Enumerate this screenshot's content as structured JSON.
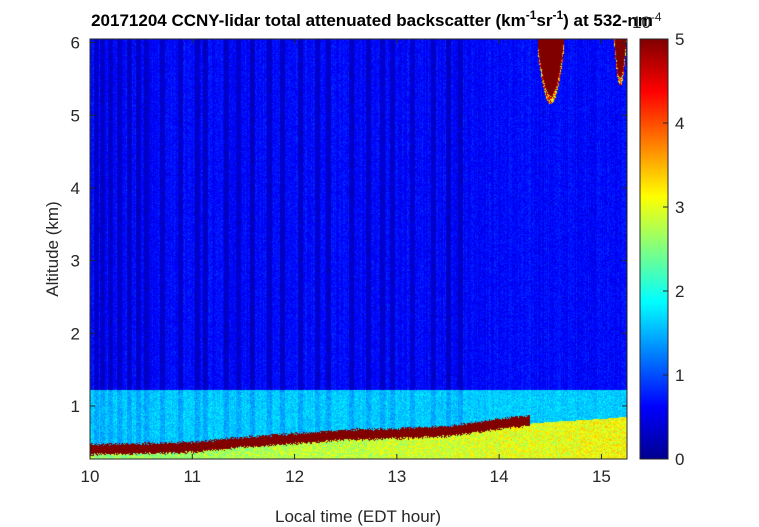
{
  "chart_data": {
    "type": "heatmap",
    "title": {
      "prefix": "20171204 CCNY-lidar total attenuated backscatter (km",
      "sup1": "-1",
      "middle": "sr",
      "sup2": "-1",
      "suffix": ") at 532-nm"
    },
    "xlabel": "Local time (EDT hour)",
    "ylabel": "Altitude (km)",
    "xlim": [
      10,
      15.25
    ],
    "ylim": [
      0.27,
      6.05
    ],
    "xticks": [
      "10",
      "11",
      "12",
      "13",
      "14",
      "15"
    ],
    "yticks": [
      "1",
      "2",
      "3",
      "4",
      "5",
      "6"
    ],
    "colormap": "jet",
    "colorbar": {
      "range": [
        0,
        5
      ],
      "ticks": [
        "0",
        "1",
        "2",
        "3",
        "4",
        "5"
      ],
      "exponent_label": "10",
      "exponent_sup": "-4",
      "position": "right"
    },
    "background_level": 0.65,
    "boundary_layer": {
      "top_km": 1.22,
      "level": 1.55,
      "start_hour": 10.0,
      "end_hour": 15.25
    },
    "aerosol_layer": {
      "times": [
        10.0,
        10.5,
        11.0,
        11.5,
        12.0,
        12.5,
        13.0,
        13.5,
        14.0,
        14.5,
        15.0,
        15.25
      ],
      "top_km": [
        0.45,
        0.45,
        0.47,
        0.52,
        0.58,
        0.62,
        0.64,
        0.66,
        0.72,
        0.78,
        0.82,
        0.85
      ],
      "level": [
        2.6,
        2.6,
        2.7,
        2.7,
        2.8,
        2.8,
        2.9,
        2.9,
        3.0,
        3.0,
        3.1,
        3.1
      ]
    },
    "strong_aerosol_band": {
      "times": [
        10.0,
        10.5,
        11.0,
        11.5,
        12.0,
        12.5,
        13.0,
        13.5,
        14.0,
        14.3
      ],
      "center_km": [
        0.4,
        0.41,
        0.43,
        0.5,
        0.55,
        0.6,
        0.62,
        0.65,
        0.75,
        0.8
      ],
      "level": 5
    },
    "clouds": [
      {
        "start_hour": 14.38,
        "end_hour": 14.63,
        "base_km": 5.15,
        "level": 5
      },
      {
        "start_hour": 15.12,
        "end_hour": 15.25,
        "base_km": 5.4,
        "level": 5
      }
    ],
    "dark_profiles_hours": [
      10.06,
      10.12,
      10.2,
      10.28,
      10.38,
      10.47,
      10.55,
      10.7,
      10.88,
      11.05,
      11.12,
      11.33,
      11.45,
      11.58,
      11.75,
      11.88,
      12.05,
      12.22,
      12.33,
      12.55,
      12.72,
      12.85,
      12.95,
      13.15,
      13.35,
      13.5,
      13.62
    ]
  }
}
